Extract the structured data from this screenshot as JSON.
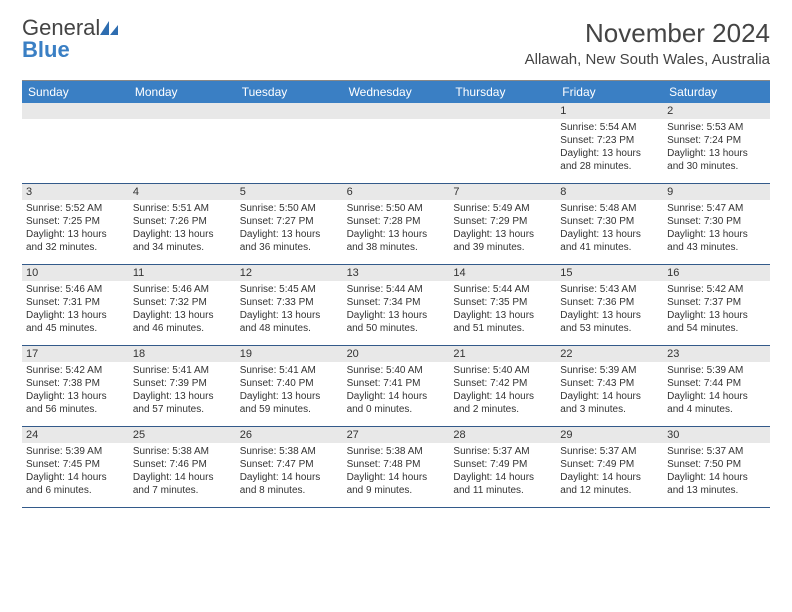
{
  "logo": {
    "text1": "General",
    "text2": "Blue"
  },
  "title": "November 2024",
  "location": "Allawah, New South Wales, Australia",
  "day_headers": [
    "Sunday",
    "Monday",
    "Tuesday",
    "Wednesday",
    "Thursday",
    "Friday",
    "Saturday"
  ],
  "colors": {
    "header_bg": "#3a7fc4",
    "daynum_bg": "#e8e8e8",
    "week_border": "#335a8a"
  },
  "weeks": [
    [
      {
        "n": "",
        "sr": "",
        "ss": "",
        "dl": ""
      },
      {
        "n": "",
        "sr": "",
        "ss": "",
        "dl": ""
      },
      {
        "n": "",
        "sr": "",
        "ss": "",
        "dl": ""
      },
      {
        "n": "",
        "sr": "",
        "ss": "",
        "dl": ""
      },
      {
        "n": "",
        "sr": "",
        "ss": "",
        "dl": ""
      },
      {
        "n": "1",
        "sr": "Sunrise: 5:54 AM",
        "ss": "Sunset: 7:23 PM",
        "dl": "Daylight: 13 hours and 28 minutes."
      },
      {
        "n": "2",
        "sr": "Sunrise: 5:53 AM",
        "ss": "Sunset: 7:24 PM",
        "dl": "Daylight: 13 hours and 30 minutes."
      }
    ],
    [
      {
        "n": "3",
        "sr": "Sunrise: 5:52 AM",
        "ss": "Sunset: 7:25 PM",
        "dl": "Daylight: 13 hours and 32 minutes."
      },
      {
        "n": "4",
        "sr": "Sunrise: 5:51 AM",
        "ss": "Sunset: 7:26 PM",
        "dl": "Daylight: 13 hours and 34 minutes."
      },
      {
        "n": "5",
        "sr": "Sunrise: 5:50 AM",
        "ss": "Sunset: 7:27 PM",
        "dl": "Daylight: 13 hours and 36 minutes."
      },
      {
        "n": "6",
        "sr": "Sunrise: 5:50 AM",
        "ss": "Sunset: 7:28 PM",
        "dl": "Daylight: 13 hours and 38 minutes."
      },
      {
        "n": "7",
        "sr": "Sunrise: 5:49 AM",
        "ss": "Sunset: 7:29 PM",
        "dl": "Daylight: 13 hours and 39 minutes."
      },
      {
        "n": "8",
        "sr": "Sunrise: 5:48 AM",
        "ss": "Sunset: 7:30 PM",
        "dl": "Daylight: 13 hours and 41 minutes."
      },
      {
        "n": "9",
        "sr": "Sunrise: 5:47 AM",
        "ss": "Sunset: 7:30 PM",
        "dl": "Daylight: 13 hours and 43 minutes."
      }
    ],
    [
      {
        "n": "10",
        "sr": "Sunrise: 5:46 AM",
        "ss": "Sunset: 7:31 PM",
        "dl": "Daylight: 13 hours and 45 minutes."
      },
      {
        "n": "11",
        "sr": "Sunrise: 5:46 AM",
        "ss": "Sunset: 7:32 PM",
        "dl": "Daylight: 13 hours and 46 minutes."
      },
      {
        "n": "12",
        "sr": "Sunrise: 5:45 AM",
        "ss": "Sunset: 7:33 PM",
        "dl": "Daylight: 13 hours and 48 minutes."
      },
      {
        "n": "13",
        "sr": "Sunrise: 5:44 AM",
        "ss": "Sunset: 7:34 PM",
        "dl": "Daylight: 13 hours and 50 minutes."
      },
      {
        "n": "14",
        "sr": "Sunrise: 5:44 AM",
        "ss": "Sunset: 7:35 PM",
        "dl": "Daylight: 13 hours and 51 minutes."
      },
      {
        "n": "15",
        "sr": "Sunrise: 5:43 AM",
        "ss": "Sunset: 7:36 PM",
        "dl": "Daylight: 13 hours and 53 minutes."
      },
      {
        "n": "16",
        "sr": "Sunrise: 5:42 AM",
        "ss": "Sunset: 7:37 PM",
        "dl": "Daylight: 13 hours and 54 minutes."
      }
    ],
    [
      {
        "n": "17",
        "sr": "Sunrise: 5:42 AM",
        "ss": "Sunset: 7:38 PM",
        "dl": "Daylight: 13 hours and 56 minutes."
      },
      {
        "n": "18",
        "sr": "Sunrise: 5:41 AM",
        "ss": "Sunset: 7:39 PM",
        "dl": "Daylight: 13 hours and 57 minutes."
      },
      {
        "n": "19",
        "sr": "Sunrise: 5:41 AM",
        "ss": "Sunset: 7:40 PM",
        "dl": "Daylight: 13 hours and 59 minutes."
      },
      {
        "n": "20",
        "sr": "Sunrise: 5:40 AM",
        "ss": "Sunset: 7:41 PM",
        "dl": "Daylight: 14 hours and 0 minutes."
      },
      {
        "n": "21",
        "sr": "Sunrise: 5:40 AM",
        "ss": "Sunset: 7:42 PM",
        "dl": "Daylight: 14 hours and 2 minutes."
      },
      {
        "n": "22",
        "sr": "Sunrise: 5:39 AM",
        "ss": "Sunset: 7:43 PM",
        "dl": "Daylight: 14 hours and 3 minutes."
      },
      {
        "n": "23",
        "sr": "Sunrise: 5:39 AM",
        "ss": "Sunset: 7:44 PM",
        "dl": "Daylight: 14 hours and 4 minutes."
      }
    ],
    [
      {
        "n": "24",
        "sr": "Sunrise: 5:39 AM",
        "ss": "Sunset: 7:45 PM",
        "dl": "Daylight: 14 hours and 6 minutes."
      },
      {
        "n": "25",
        "sr": "Sunrise: 5:38 AM",
        "ss": "Sunset: 7:46 PM",
        "dl": "Daylight: 14 hours and 7 minutes."
      },
      {
        "n": "26",
        "sr": "Sunrise: 5:38 AM",
        "ss": "Sunset: 7:47 PM",
        "dl": "Daylight: 14 hours and 8 minutes."
      },
      {
        "n": "27",
        "sr": "Sunrise: 5:38 AM",
        "ss": "Sunset: 7:48 PM",
        "dl": "Daylight: 14 hours and 9 minutes."
      },
      {
        "n": "28",
        "sr": "Sunrise: 5:37 AM",
        "ss": "Sunset: 7:49 PM",
        "dl": "Daylight: 14 hours and 11 minutes."
      },
      {
        "n": "29",
        "sr": "Sunrise: 5:37 AM",
        "ss": "Sunset: 7:49 PM",
        "dl": "Daylight: 14 hours and 12 minutes."
      },
      {
        "n": "30",
        "sr": "Sunrise: 5:37 AM",
        "ss": "Sunset: 7:50 PM",
        "dl": "Daylight: 14 hours and 13 minutes."
      }
    ]
  ]
}
